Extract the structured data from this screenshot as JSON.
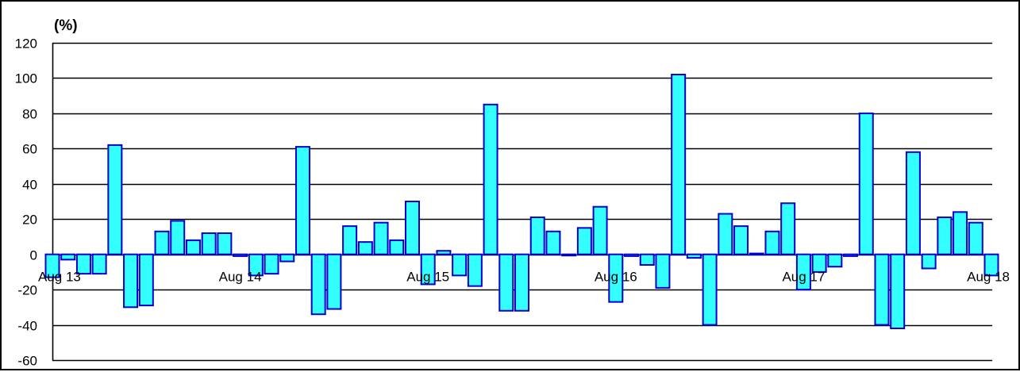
{
  "chart_data": {
    "type": "bar",
    "unit_label": "(%)",
    "ylim": [
      -60,
      120
    ],
    "y_ticks": [
      "120",
      "100",
      "80",
      "60",
      "40",
      "20",
      "0",
      "-20",
      "-40",
      "-60"
    ],
    "x_tick_labels": [
      {
        "label": "Aug 13",
        "at_index": 0
      },
      {
        "label": "Aug 14",
        "at_index": 12
      },
      {
        "label": "Aug 15",
        "at_index": 24
      },
      {
        "label": "Aug 16",
        "at_index": 36
      },
      {
        "label": "Aug 17",
        "at_index": 48
      },
      {
        "label": "Aug 18",
        "at_index": 60
      }
    ],
    "grid": "horizontal",
    "colors": {
      "bar_fill": "#33FFFF",
      "bar_stroke": "#0000CC",
      "grid": "#000000"
    },
    "values": [
      -13,
      -3,
      -11,
      -11,
      62,
      -30,
      -29,
      13,
      19,
      8,
      12,
      12,
      -1,
      -12,
      -11,
      -4,
      61,
      -34,
      -31,
      16,
      7,
      18,
      8,
      30,
      -17,
      2,
      -12,
      -18,
      85,
      -32,
      -32,
      21,
      13,
      -0.5,
      15,
      27,
      -27,
      -1,
      -6,
      -19,
      102,
      -2,
      -40,
      23,
      16,
      0.5,
      13,
      29,
      -20,
      -10,
      -7,
      -1,
      80,
      -40,
      -42,
      58,
      -8,
      21,
      24,
      18,
      -12
    ]
  }
}
